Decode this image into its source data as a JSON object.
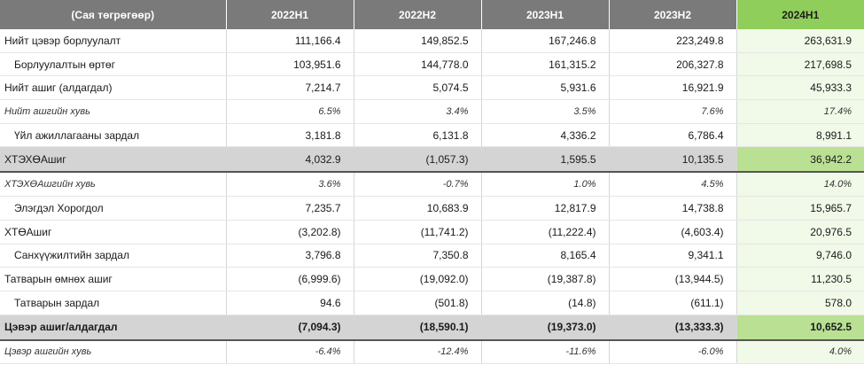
{
  "table": {
    "headers": [
      "(Сая төгрөгөөр)",
      "2022H1",
      "2022H2",
      "2023H1",
      "2023H2",
      "2024H1"
    ],
    "rows": [
      {
        "label": "Нийт цэвэр борлуулалт",
        "values": [
          "111,166.4",
          "149,852.5",
          "167,246.8",
          "223,249.8",
          "263,631.9"
        ]
      },
      {
        "label": "Борлуулалтын өртөг",
        "values": [
          "103,951.6",
          "144,778.0",
          "161,315.2",
          "206,327.8",
          "217,698.5"
        ]
      },
      {
        "label": "Нийт ашиг (алдагдал)",
        "values": [
          "7,214.7",
          "5,074.5",
          "5,931.6",
          "16,921.9",
          "45,933.3"
        ]
      },
      {
        "label": "Нийт ашгийн хувь",
        "values": [
          "6.5%",
          "3.4%",
          "3.5%",
          "7.6%",
          "17.4%"
        ]
      },
      {
        "label": "Үйл ажиллагааны зардал",
        "values": [
          "3,181.8",
          "6,131.8",
          "4,336.2",
          "6,786.4",
          "8,991.1"
        ]
      },
      {
        "label": "ХТЭХӨАшиг",
        "values": [
          "4,032.9",
          "(1,057.3)",
          "1,595.5",
          "10,135.5",
          "36,942.2"
        ]
      },
      {
        "label": "ХТЭХӨАшгийн хувь",
        "values": [
          "3.6%",
          "-0.7%",
          "1.0%",
          "4.5%",
          "14.0%"
        ]
      },
      {
        "label": "Элэгдэл Хорогдол",
        "values": [
          "7,235.7",
          "10,683.9",
          "12,817.9",
          "14,738.8",
          "15,965.7"
        ]
      },
      {
        "label": "ХТӨАшиг",
        "values": [
          "(3,202.8)",
          "(11,741.2)",
          "(11,222.4)",
          "(4,603.4)",
          "20,976.5"
        ]
      },
      {
        "label": "Санхүүжилтийн зардал",
        "values": [
          "3,796.8",
          "7,350.8",
          "8,165.4",
          "9,341.1",
          "9,746.0"
        ]
      },
      {
        "label": "Татварын өмнөх ашиг",
        "values": [
          "(6,999.6)",
          "(19,092.0)",
          "(19,387.8)",
          "(13,944.5)",
          "11,230.5"
        ]
      },
      {
        "label": "Татварын зардал",
        "values": [
          "94.6",
          "(501.8)",
          "(14.8)",
          "(611.1)",
          "578.0"
        ]
      },
      {
        "label": "Цэвэр ашиг/алдагдал",
        "values": [
          "(7,094.3)",
          "(18,590.1)",
          "(19,373.0)",
          "(13,333.3)",
          "10,652.5"
        ]
      },
      {
        "label": "Цэвэр ашгийн хувь",
        "values": [
          "-6.4%",
          "-12.4%",
          "-11.6%",
          "-6.0%",
          "4.0%"
        ]
      }
    ]
  }
}
